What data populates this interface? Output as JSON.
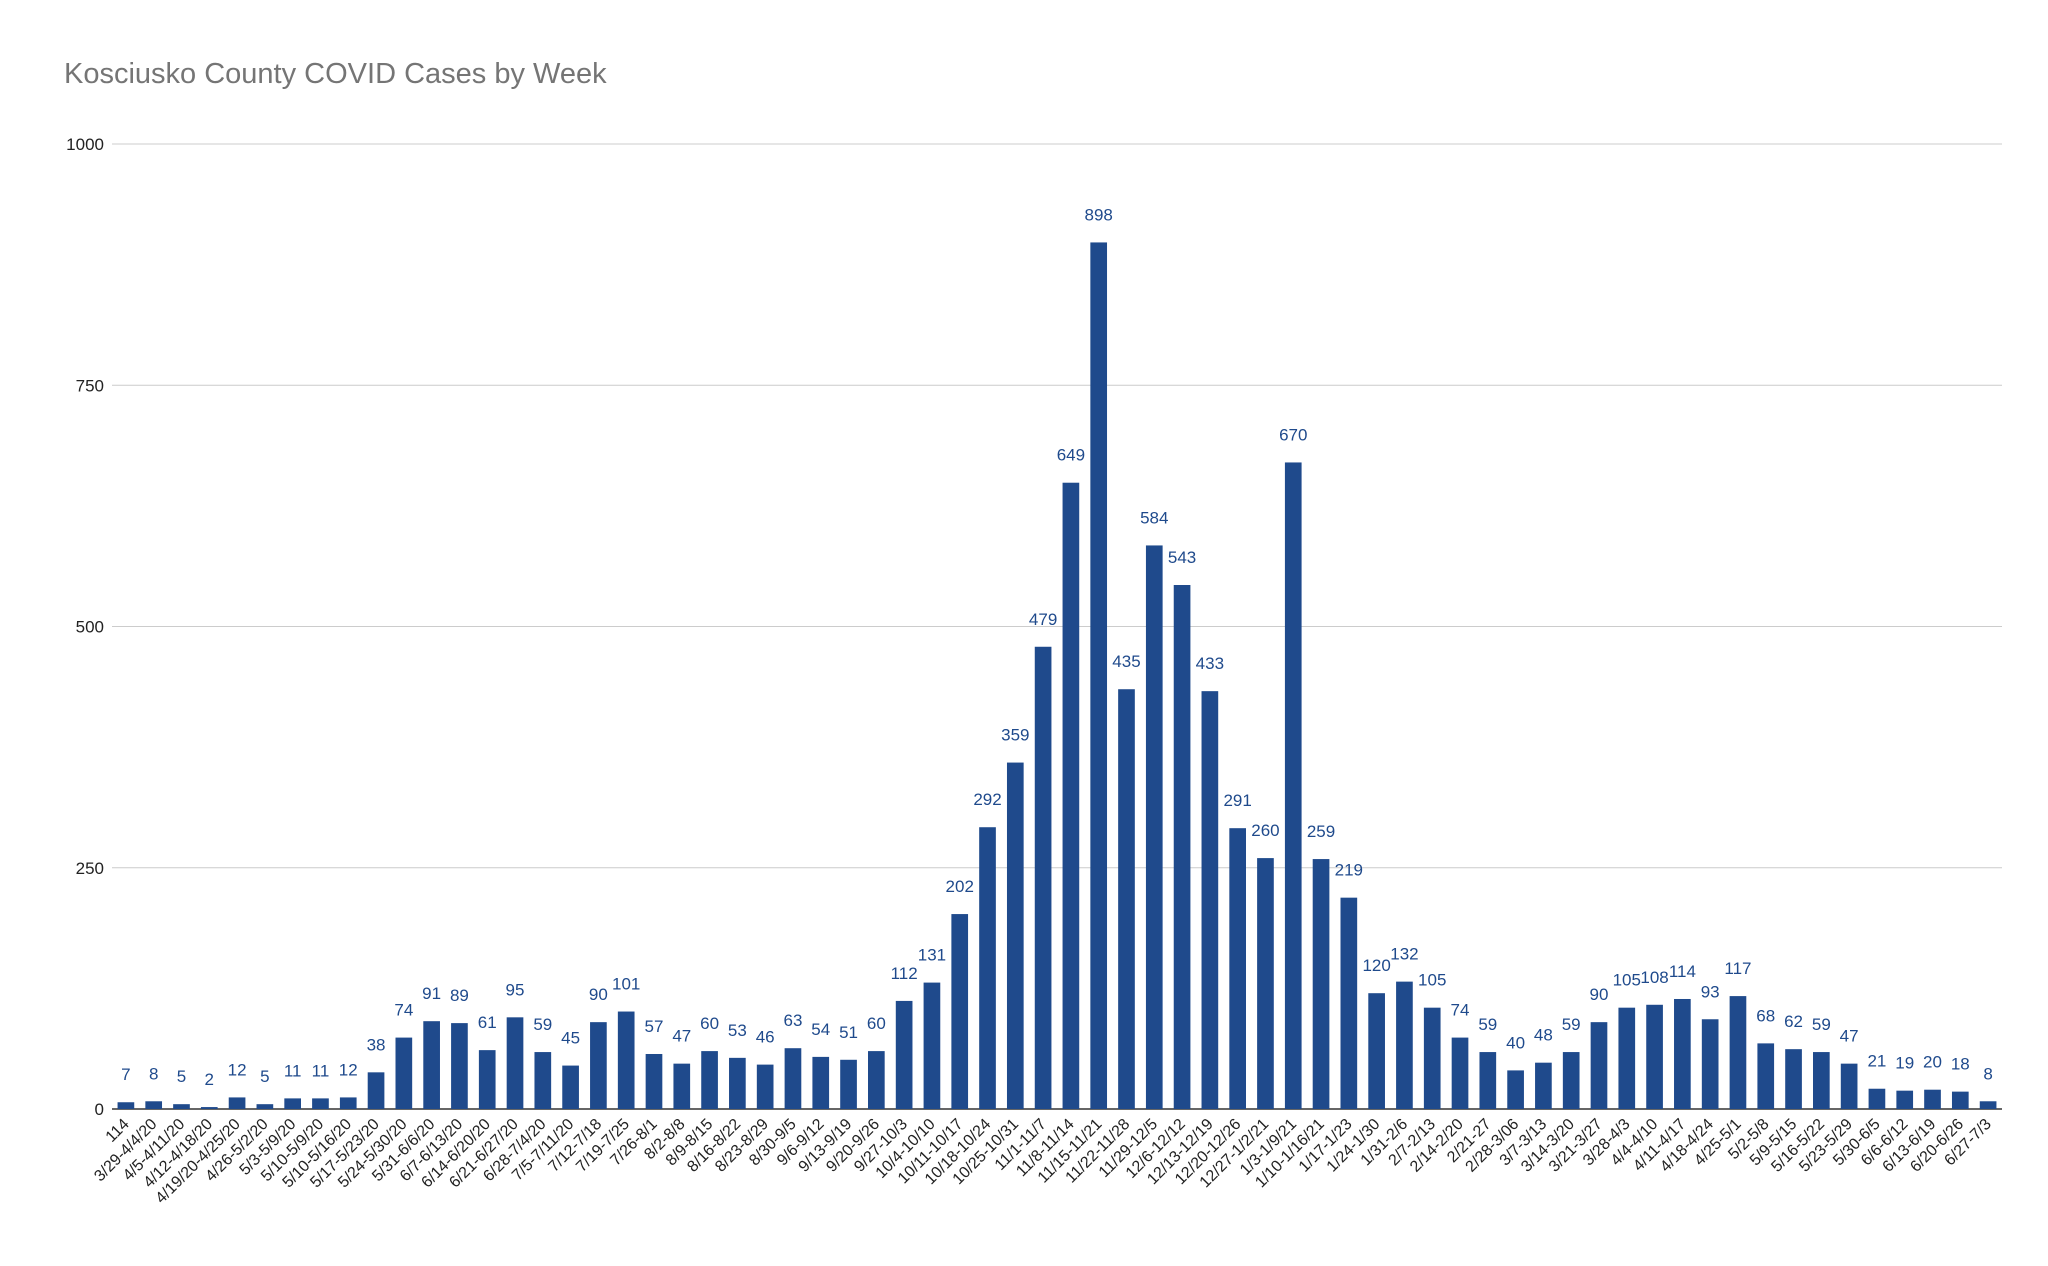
{
  "chart_data": {
    "type": "bar",
    "title": "Kosciusko County COVID Cases by Week",
    "xlabel": "",
    "ylabel": "",
    "ylim": [
      0,
      1000
    ],
    "yticks": [
      0,
      250,
      500,
      750,
      1000
    ],
    "grid": true,
    "bar_color": "#1f4a8c",
    "grid_color": "#cccccc",
    "categories": [
      "114",
      "3/29-4/4/20",
      "4/5-4/11/20",
      "4/12-4/18/20",
      "4/19/20-4/25/20",
      "4/26-5/2/20",
      "5/3-5/9/20",
      "5/10-5/9/20",
      "5/10-5/16/20",
      "5/17-5/23/20",
      "5/24-5/30/20",
      "5/31-6/6/20",
      "6/7-6/13/20",
      "6/14-6/20/20",
      "6/21-6/27/20",
      "6/28-7/4/20",
      "7/5-7/11/20",
      "7/12-7/18",
      "7/19-7/25",
      "7/26-8/1",
      "8/2-8/8",
      "8/9-8/15",
      "8/16-8/22",
      "8/23-8/29",
      "8/30-9/5",
      "9/6-9/12",
      "9/13-9/19",
      "9/20-9/26",
      "9/27-10/3",
      "10/4-10/10",
      "10/11-10/17",
      "10/18-10/24",
      "10/25-10/31",
      "11/1-11/7",
      "11/8-11/14",
      "11/15-11/21",
      "11/22-11/28",
      "11/29-12/5",
      "12/6-12/12",
      "12/13-12/19",
      "12/20-12/26",
      "12/27-1/2/21",
      "1/3-1/9/21",
      "1/10-1/16/21",
      "1/17-1/23",
      "1/24-1/30",
      "1/31-2/6",
      "2/7-2/13",
      "2/14-2/20",
      "2/21-27",
      "2/28-3/06",
      "3/7-3/13",
      "3/14-3/20",
      "3/21-3/27",
      "3/28-4/3",
      "4/4-4/10",
      "4/11-4/17",
      "4/18-4/24",
      "4/25-5/1",
      "5/2-5/8",
      "5/9-5/15",
      "5/16-5/22",
      "5/23-5/29",
      "5/30-6/5",
      "6/6-6/12",
      "6/13-6/19",
      "6/20-6/26",
      "6/27-7/3"
    ],
    "values": [
      7,
      8,
      5,
      2,
      12,
      5,
      11,
      11,
      12,
      38,
      74,
      91,
      89,
      61,
      95,
      59,
      45,
      90,
      101,
      57,
      47,
      60,
      53,
      46,
      63,
      54,
      51,
      60,
      112,
      131,
      202,
      292,
      359,
      479,
      649,
      898,
      435,
      584,
      543,
      433,
      291,
      260,
      670,
      259,
      219,
      120,
      132,
      105,
      74,
      59,
      40,
      48,
      59,
      90,
      105,
      108,
      114,
      93,
      117,
      68,
      62,
      59,
      47,
      21,
      19,
      20,
      18,
      8
    ]
  }
}
